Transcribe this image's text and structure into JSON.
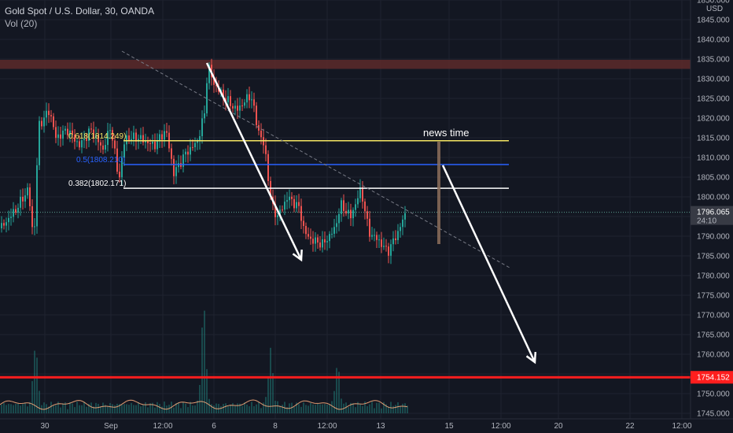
{
  "header": {
    "title": "Gold Spot / U.S. Dollar, 30, OANDA",
    "subtitle": "Vol (20)"
  },
  "colors": {
    "background": "#131722",
    "grid": "#1f2330",
    "up": "#26a69a",
    "down": "#ef5350",
    "zone": "#5d2a2a",
    "support": "#ff1e1e",
    "fib_618": "#f5e663",
    "fib_5": "#2962ff",
    "fib_382": "#ffffff",
    "trendline": "#787b86",
    "volume": "#26a69a",
    "volume_ma": "#f6a97a",
    "price_label_bg": "#373a44"
  },
  "chart_data": {
    "type": "candlestick",
    "symbol": "Gold Spot / U.S. Dollar",
    "timeframe": "30",
    "exchange": "OANDA",
    "y_axis": {
      "currency": "USD",
      "ticks": [
        "1850.000",
        "1845.000",
        "1840.000",
        "1835.000",
        "1830.000",
        "1825.000",
        "1820.000",
        "1815.000",
        "1810.000",
        "1805.000",
        "1800.000",
        "1795.000",
        "1790.000",
        "1785.000",
        "1780.000",
        "1775.000",
        "1770.000",
        "1765.000",
        "1760.000",
        "1755.000",
        "1750.000",
        "1745.000"
      ],
      "range": [
        1745,
        1850
      ]
    },
    "x_axis": {
      "ticks": [
        "30",
        "Sep",
        "12:00",
        "6",
        "8",
        "12:00",
        "13",
        "15",
        "12:00",
        "20",
        "22",
        "12:00"
      ]
    },
    "price_path": [
      {
        "t": 0,
        "p": 1792
      },
      {
        "t": 20,
        "p": 1797
      },
      {
        "t": 35,
        "p": 1802
      },
      {
        "t": 42,
        "p": 1788
      },
      {
        "t": 48,
        "p": 1818
      },
      {
        "t": 55,
        "p": 1820
      },
      {
        "t": 62,
        "p": 1822
      },
      {
        "t": 70,
        "p": 1815
      },
      {
        "t": 85,
        "p": 1817
      },
      {
        "t": 100,
        "p": 1813
      },
      {
        "t": 115,
        "p": 1817
      },
      {
        "t": 130,
        "p": 1812
      },
      {
        "t": 140,
        "p": 1818
      },
      {
        "t": 150,
        "p": 1804
      },
      {
        "t": 158,
        "p": 1815
      },
      {
        "t": 175,
        "p": 1815
      },
      {
        "t": 195,
        "p": 1813
      },
      {
        "t": 210,
        "p": 1817
      },
      {
        "t": 220,
        "p": 1806
      },
      {
        "t": 235,
        "p": 1811
      },
      {
        "t": 250,
        "p": 1814
      },
      {
        "t": 260,
        "p": 1822
      },
      {
        "t": 263,
        "p": 1834
      },
      {
        "t": 270,
        "p": 1829
      },
      {
        "t": 285,
        "p": 1825
      },
      {
        "t": 300,
        "p": 1822
      },
      {
        "t": 318,
        "p": 1826
      },
      {
        "t": 326,
        "p": 1818
      },
      {
        "t": 336,
        "p": 1812
      },
      {
        "t": 344,
        "p": 1798
      },
      {
        "t": 352,
        "p": 1795
      },
      {
        "t": 365,
        "p": 1800
      },
      {
        "t": 380,
        "p": 1797
      },
      {
        "t": 386,
        "p": 1791
      },
      {
        "t": 395,
        "p": 1789
      },
      {
        "t": 410,
        "p": 1788
      },
      {
        "t": 425,
        "p": 1792
      },
      {
        "t": 432,
        "p": 1798
      },
      {
        "t": 445,
        "p": 1795
      },
      {
        "t": 458,
        "p": 1802
      },
      {
        "t": 468,
        "p": 1791
      },
      {
        "t": 480,
        "p": 1789
      },
      {
        "t": 492,
        "p": 1786
      },
      {
        "t": 505,
        "p": 1791
      },
      {
        "t": 515,
        "p": 1796
      }
    ],
    "last_price": {
      "value": "1796.065",
      "countdown": "24:10"
    },
    "support_price": {
      "value": "1754.152"
    },
    "resistance_zone": {
      "from": 1832.5,
      "to": 1834.8
    },
    "fib_levels": [
      {
        "label": "0.618(1814.249)",
        "price": 1814.249
      },
      {
        "label": "0.5(1808.210)",
        "price": 1808.21
      },
      {
        "label": "0.382(1802.171)",
        "price": 1802.171
      }
    ],
    "annotations": {
      "news_label": "news time",
      "trendline": {
        "from": {
          "t": 155,
          "p": 1837
        },
        "to": {
          "t": 648,
          "p": 1782
        }
      },
      "arrows": [
        {
          "from": {
            "t": 263,
            "p": 1834
          },
          "to": {
            "t": 383,
            "p": 1784
          }
        },
        {
          "from": {
            "t": 563,
            "p": 1808
          },
          "to": {
            "t": 680,
            "p": 1758
          }
        }
      ],
      "news_bar": {
        "t": 558,
        "from": 1814,
        "to": 1788
      }
    },
    "volume": {
      "label": "Vol (20)",
      "max_spikes": [
        {
          "t": 44,
          "v": 0.6
        },
        {
          "t": 258,
          "v": 1.0
        },
        {
          "t": 343,
          "v": 0.55
        },
        {
          "t": 428,
          "v": 0.4
        }
      ]
    }
  }
}
